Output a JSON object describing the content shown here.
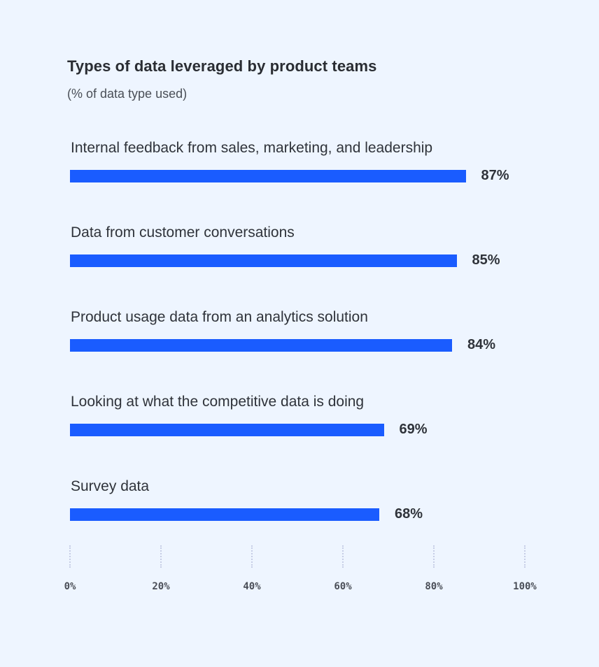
{
  "chart_data": {
    "type": "bar",
    "orientation": "horizontal",
    "title": "Types of data leveraged by product teams",
    "subtitle": "(% of data type used)",
    "categories": [
      "Internal feedback from sales, marketing, and leadership",
      "Data from customer conversations",
      "Product usage data from an analytics solution",
      "Looking at what the competitive data is doing",
      "Survey data"
    ],
    "values": [
      87,
      85,
      84,
      69,
      68
    ],
    "value_labels": [
      "87%",
      "85%",
      "84%",
      "69%",
      "68%"
    ],
    "xlim": [
      0,
      100
    ],
    "x_ticks": [
      "0%",
      "20%",
      "40%",
      "60%",
      "80%",
      "100%"
    ],
    "bar_color": "#1a5cff",
    "background_color": "#eef5ff",
    "grid": "dotted vertical at ticks"
  }
}
